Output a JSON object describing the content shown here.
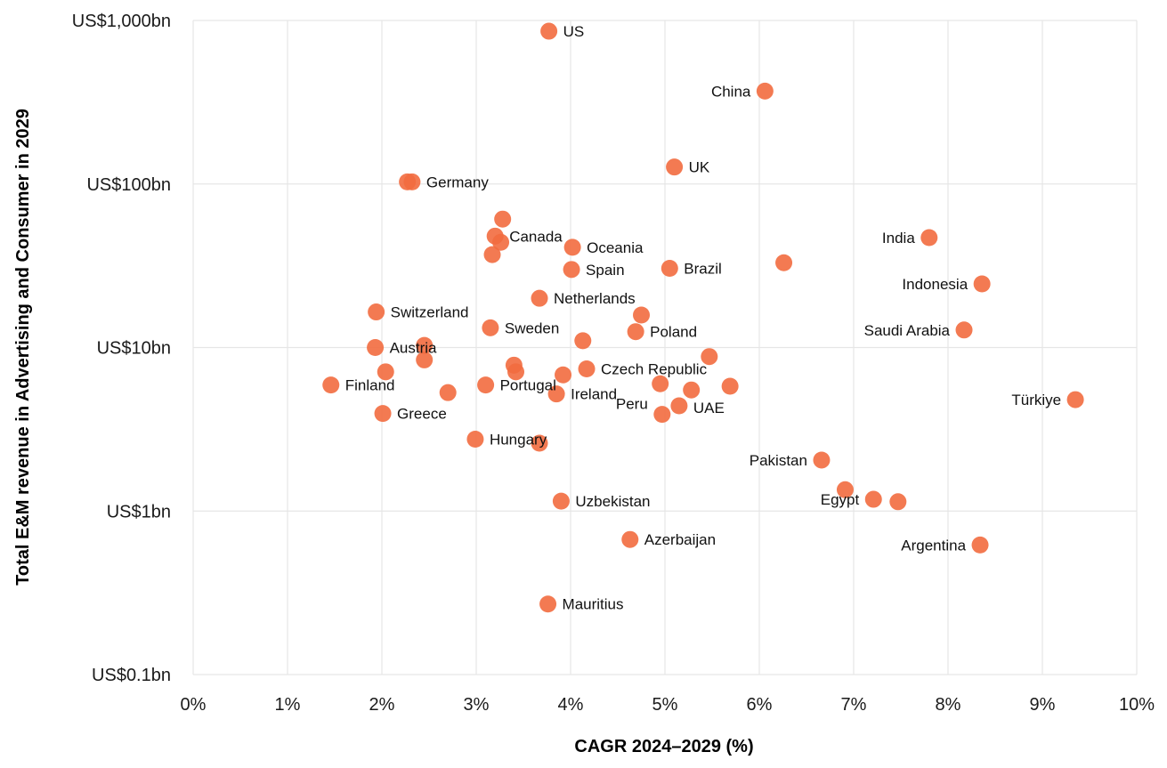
{
  "chart_data": {
    "type": "scatter",
    "xlabel": "CAGR 2024–2029 (%)",
    "ylabel": "Total E&M revenue in Advertising and Consumer in 2029",
    "x_range": [
      0,
      10
    ],
    "y_range": [
      0.1,
      1000
    ],
    "y_scale": "log",
    "x_ticks": [
      {
        "v": 0,
        "label": "0%"
      },
      {
        "v": 1,
        "label": "1%"
      },
      {
        "v": 2,
        "label": "2%"
      },
      {
        "v": 3,
        "label": "3%"
      },
      {
        "v": 4,
        "label": "4%"
      },
      {
        "v": 5,
        "label": "5%"
      },
      {
        "v": 6,
        "label": "6%"
      },
      {
        "v": 7,
        "label": "7%"
      },
      {
        "v": 8,
        "label": "8%"
      },
      {
        "v": 9,
        "label": "9%"
      },
      {
        "v": 10,
        "label": "10%"
      }
    ],
    "y_ticks": [
      {
        "v": 1000,
        "label": "US$1,000bn"
      },
      {
        "v": 100,
        "label": "US$100bn"
      },
      {
        "v": 10,
        "label": "US$10bn"
      },
      {
        "v": 1,
        "label": "US$1bn"
      },
      {
        "v": 0.1,
        "label": "US$0.1bn"
      }
    ],
    "color": "#f26b3f",
    "points": [
      {
        "name": "US",
        "label": "US",
        "x": 3.77,
        "y": 860,
        "side": "right"
      },
      {
        "name": "China",
        "label": "China",
        "x": 6.06,
        "y": 370,
        "side": "left"
      },
      {
        "name": "UK",
        "label": "UK",
        "x": 5.1,
        "y": 127,
        "side": "right"
      },
      {
        "name": "Germany",
        "label": "Germany",
        "x": 2.32,
        "y": 103,
        "side": "right"
      },
      {
        "name": "germany-2",
        "label": "",
        "x": 2.27,
        "y": 103
      },
      {
        "name": "canada-1",
        "label": "",
        "x": 3.28,
        "y": 61
      },
      {
        "name": "Canada",
        "label": "Canada",
        "x": 3.2,
        "y": 48,
        "side": "right"
      },
      {
        "name": "canada-3",
        "label": "",
        "x": 3.26,
        "y": 44
      },
      {
        "name": "canada-4",
        "label": "",
        "x": 3.17,
        "y": 37
      },
      {
        "name": "Oceania",
        "label": "Oceania",
        "x": 4.02,
        "y": 41,
        "side": "right"
      },
      {
        "name": "Spain",
        "label": "Spain",
        "x": 4.01,
        "y": 30,
        "side": "right"
      },
      {
        "name": "Brazil",
        "label": "Brazil",
        "x": 5.05,
        "y": 30.5,
        "side": "right"
      },
      {
        "name": "unlabeled-6.2",
        "label": "",
        "x": 6.26,
        "y": 33
      },
      {
        "name": "India",
        "label": "India",
        "x": 7.8,
        "y": 47,
        "side": "left"
      },
      {
        "name": "Indonesia",
        "label": "Indonesia",
        "x": 8.36,
        "y": 24.5,
        "side": "left"
      },
      {
        "name": "Netherlands",
        "label": "Netherlands",
        "x": 3.67,
        "y": 20,
        "side": "right"
      },
      {
        "name": "Switzerland",
        "label": "Switzerland",
        "x": 1.94,
        "y": 16.5,
        "side": "right"
      },
      {
        "name": "unlabeled-4.7",
        "label": "",
        "x": 4.75,
        "y": 15.8
      },
      {
        "name": "Sweden",
        "label": "Sweden",
        "x": 3.15,
        "y": 13.2,
        "side": "right"
      },
      {
        "name": "Poland",
        "label": "Poland",
        "x": 4.69,
        "y": 12.5,
        "side": "right"
      },
      {
        "name": "Saudi Arabia",
        "label": "Saudi Arabia",
        "x": 8.17,
        "y": 12.8,
        "side": "left"
      },
      {
        "name": "unlabeled-4.1",
        "label": "",
        "x": 4.13,
        "y": 11
      },
      {
        "name": "Austria",
        "label": "Austria",
        "x": 1.93,
        "y": 10,
        "side": "right"
      },
      {
        "name": "austria-2",
        "label": "",
        "x": 2.45,
        "y": 10.3
      },
      {
        "name": "unlabeled-2.45",
        "label": "",
        "x": 2.45,
        "y": 8.4
      },
      {
        "name": "unlabeled-5.5",
        "label": "",
        "x": 5.47,
        "y": 8.8
      },
      {
        "name": "unlabeled-3.4a",
        "label": "",
        "x": 3.4,
        "y": 7.8
      },
      {
        "name": "unlabeled-3.4b",
        "label": "",
        "x": 3.42,
        "y": 7.1
      },
      {
        "name": "unlabeled-2.05",
        "label": "",
        "x": 2.04,
        "y": 7.1
      },
      {
        "name": "Czech Republic",
        "label": "Czech Republic",
        "x": 4.17,
        "y": 7.4,
        "side": "right"
      },
      {
        "name": "unlabeled-3.9",
        "label": "",
        "x": 3.92,
        "y": 6.8
      },
      {
        "name": "Finland",
        "label": "Finland",
        "x": 1.46,
        "y": 5.9,
        "side": "right"
      },
      {
        "name": "Portugal",
        "label": "Portugal",
        "x": 3.1,
        "y": 5.9,
        "side": "right"
      },
      {
        "name": "unlabeled-2.7",
        "label": "",
        "x": 2.7,
        "y": 5.3
      },
      {
        "name": "Ireland",
        "label": "Ireland",
        "x": 3.85,
        "y": 5.2,
        "side": "right"
      },
      {
        "name": "unlabeled-4.95",
        "label": "",
        "x": 4.95,
        "y": 6
      },
      {
        "name": "unlabeled-5.3",
        "label": "",
        "x": 5.28,
        "y": 5.5
      },
      {
        "name": "unlabeled-5.7",
        "label": "",
        "x": 5.69,
        "y": 5.8
      },
      {
        "name": "Peru",
        "label": "Peru",
        "x": 4.97,
        "y": 3.9,
        "side": "left",
        "dy": -12
      },
      {
        "name": "UAE",
        "label": "UAE",
        "x": 5.15,
        "y": 4.4,
        "side": "right",
        "dy": 2
      },
      {
        "name": "Greece",
        "label": "Greece",
        "x": 2.01,
        "y": 3.95,
        "side": "right"
      },
      {
        "name": "Türkiye",
        "label": "Türkiye",
        "x": 9.35,
        "y": 4.8,
        "side": "left"
      },
      {
        "name": "Hungary",
        "label": "Hungary",
        "x": 2.99,
        "y": 2.75,
        "side": "right"
      },
      {
        "name": "hungary-2",
        "label": "",
        "x": 3.67,
        "y": 2.6
      },
      {
        "name": "Pakistan",
        "label": "Pakistan",
        "x": 6.66,
        "y": 2.05,
        "side": "left"
      },
      {
        "name": "unlabeled-6.9",
        "label": "",
        "x": 6.91,
        "y": 1.35
      },
      {
        "name": "Egypt",
        "label": "Egypt",
        "x": 7.21,
        "y": 1.18,
        "side": "left"
      },
      {
        "name": "unlabeled-7.5",
        "label": "",
        "x": 7.47,
        "y": 1.14
      },
      {
        "name": "Uzbekistan",
        "label": "Uzbekistan",
        "x": 3.9,
        "y": 1.15,
        "side": "right"
      },
      {
        "name": "Azerbaijan",
        "label": "Azerbaijan",
        "x": 4.63,
        "y": 0.67,
        "side": "right"
      },
      {
        "name": "Argentina",
        "label": "Argentina",
        "x": 8.34,
        "y": 0.62,
        "side": "left"
      },
      {
        "name": "Mauritius",
        "label": "Mauritius",
        "x": 3.76,
        "y": 0.27,
        "side": "right"
      }
    ]
  }
}
